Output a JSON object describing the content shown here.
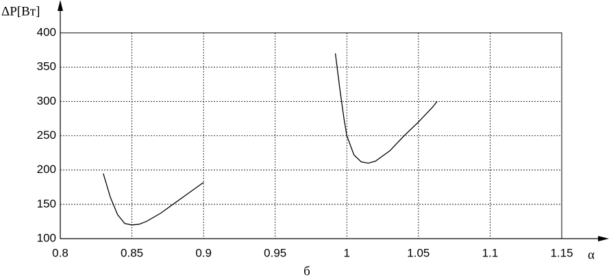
{
  "chart_data": {
    "type": "line",
    "y_label": "ΔP[Вт]",
    "x_label": "α",
    "caption": "б",
    "series": [
      {
        "color": "#000000",
        "x": [
          0.83,
          0.835,
          0.84,
          0.845,
          0.85,
          0.855,
          0.86,
          0.87,
          0.88,
          0.89,
          0.9
        ],
        "values": [
          195,
          160,
          135,
          122,
          120,
          121,
          125,
          137,
          152,
          167,
          182
        ]
      },
      {
        "color": "#000000",
        "x": [
          0.992,
          0.995,
          0.998,
          1.0,
          1.005,
          1.01,
          1.015,
          1.02,
          1.03,
          1.04,
          1.05,
          1.06,
          1.063
        ],
        "values": [
          370,
          320,
          275,
          250,
          222,
          212,
          210,
          213,
          228,
          250,
          270,
          292,
          300
        ]
      }
    ],
    "xlim": [
      0.8,
      1.15
    ],
    "ylim": [
      100,
      400
    ],
    "xticks": [
      0.8,
      0.85,
      0.9,
      0.95,
      1,
      1.05,
      1.1,
      1.15
    ],
    "yticks": [
      100,
      150,
      200,
      250,
      300,
      350,
      400
    ],
    "grid": true
  }
}
